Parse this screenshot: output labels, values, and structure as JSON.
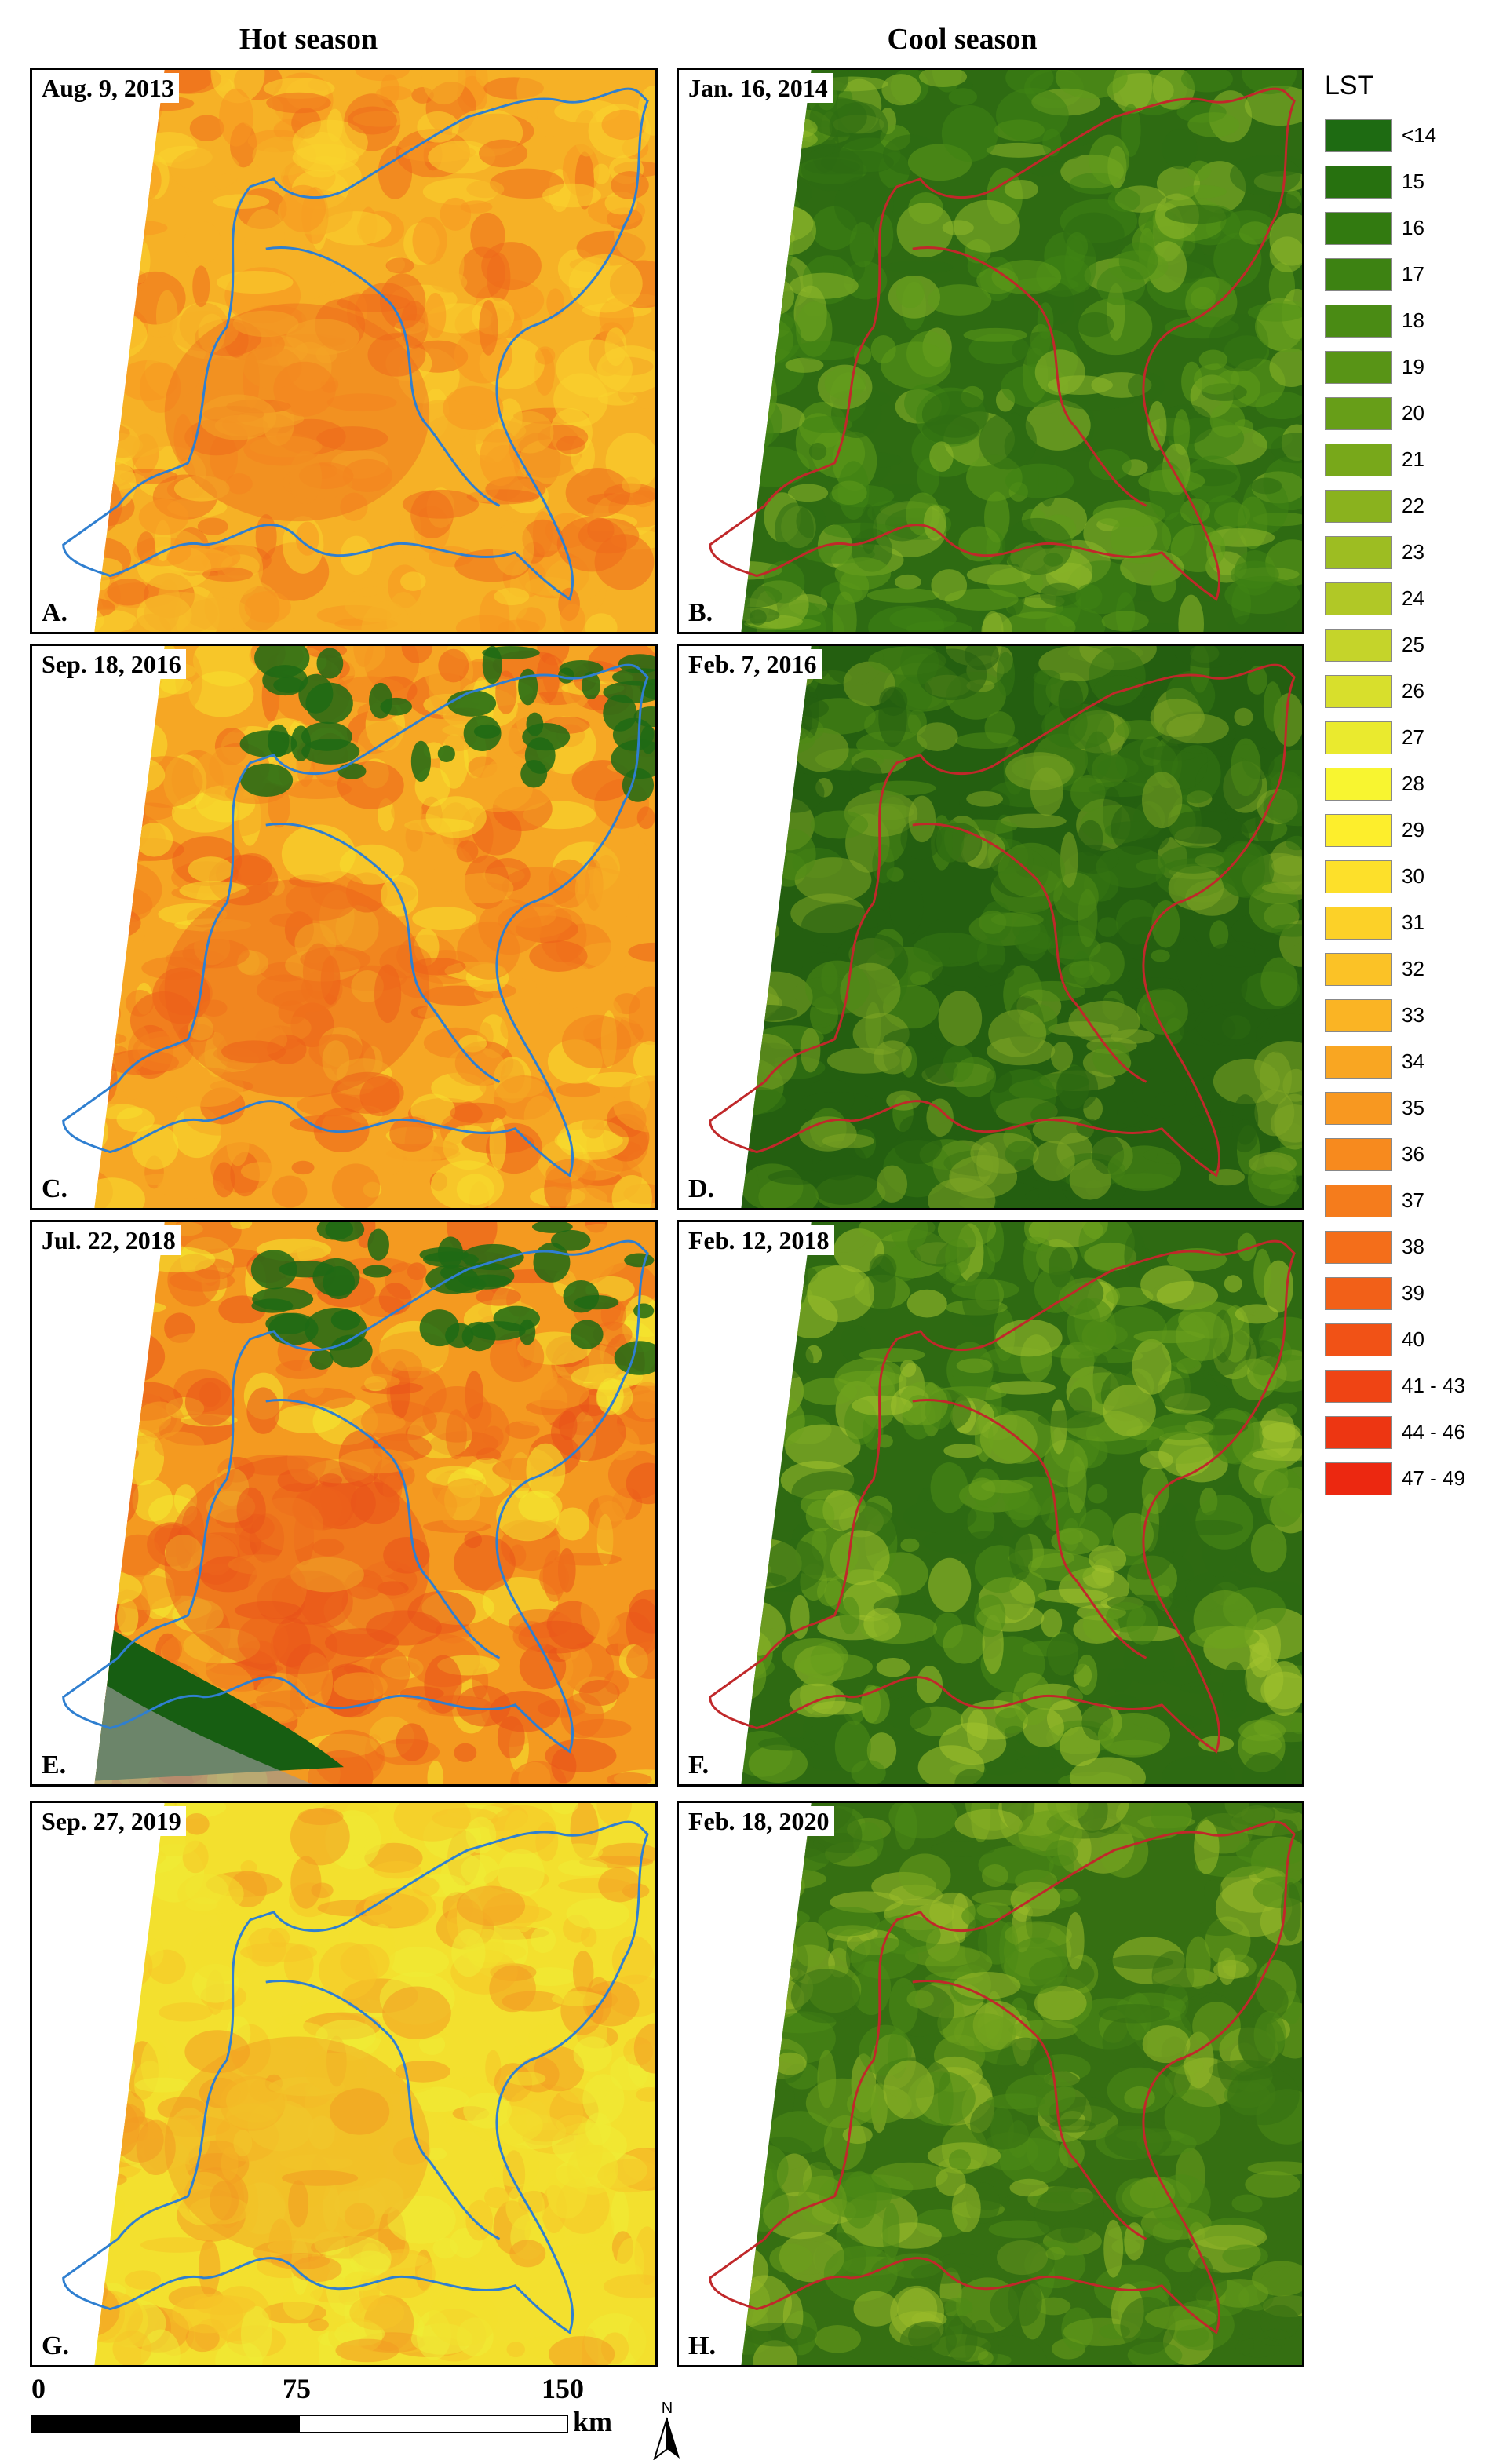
{
  "headers": {
    "hot": "Hot season",
    "cool": "Cool season"
  },
  "panels": [
    {
      "date": "Aug. 9, 2013",
      "letter": "A.",
      "season": "hot",
      "palette": [
        "#f6b126",
        "#f89520",
        "#ee6a1c",
        "#f9d32e"
      ]
    },
    {
      "date": "Jan. 16, 2014",
      "letter": "B.",
      "season": "cool",
      "palette": [
        "#2e6b12",
        "#3f8414",
        "#5e9a1a",
        "#8fb82a"
      ]
    },
    {
      "date": "Sep. 18, 2016",
      "letter": "C.",
      "season": "hot",
      "palette": [
        "#f6a724",
        "#f2801e",
        "#ec5f1a",
        "#f7e02e"
      ]
    },
    {
      "date": "Feb. 7, 2016",
      "letter": "D.",
      "season": "cool",
      "palette": [
        "#245f10",
        "#357512",
        "#4e8a16",
        "#7fa624"
      ]
    },
    {
      "date": "Jul. 22, 2018",
      "letter": "E.",
      "season": "hot",
      "palette": [
        "#f49a20",
        "#ef6e1c",
        "#e9521a",
        "#f4ea30"
      ]
    },
    {
      "date": "Feb. 12, 2018",
      "letter": "F.",
      "season": "cool",
      "palette": [
        "#2e6a12",
        "#4c8a16",
        "#6ea21e",
        "#a3c22e"
      ]
    },
    {
      "date": "Sep. 27, 2019",
      "letter": "G.",
      "season": "hot",
      "palette": [
        "#f3e02e",
        "#f5c528",
        "#f29b22",
        "#efec36"
      ]
    },
    {
      "date": "Feb. 18, 2020",
      "letter": "H.",
      "season": "cool",
      "palette": [
        "#356f12",
        "#4d8b16",
        "#6c9e1c",
        "#9bbb2a"
      ]
    }
  ],
  "legend": {
    "title": "LST",
    "items": [
      {
        "label": "<14",
        "color": "#1e6b12"
      },
      {
        "label": "15",
        "color": "#27710f"
      },
      {
        "label": "16",
        "color": "#327a10"
      },
      {
        "label": "17",
        "color": "#3d8212"
      },
      {
        "label": "18",
        "color": "#4a8b14"
      },
      {
        "label": "19",
        "color": "#589416"
      },
      {
        "label": "20",
        "color": "#679e18"
      },
      {
        "label": "21",
        "color": "#78a81a"
      },
      {
        "label": "22",
        "color": "#8ab21e"
      },
      {
        "label": "23",
        "color": "#9dbd22"
      },
      {
        "label": "24",
        "color": "#b1c826"
      },
      {
        "label": "25",
        "color": "#c5d42a"
      },
      {
        "label": "26",
        "color": "#d8df2c"
      },
      {
        "label": "27",
        "color": "#eaea2e"
      },
      {
        "label": "28",
        "color": "#f8f530"
      },
      {
        "label": "29",
        "color": "#fdee2c"
      },
      {
        "label": "30",
        "color": "#fde02a"
      },
      {
        "label": "31",
        "color": "#fcd128"
      },
      {
        "label": "32",
        "color": "#fbc226"
      },
      {
        "label": "33",
        "color": "#fab424"
      },
      {
        "label": "34",
        "color": "#f9a622"
      },
      {
        "label": "35",
        "color": "#f89820"
      },
      {
        "label": "36",
        "color": "#f78a1e"
      },
      {
        "label": "37",
        "color": "#f57c1c"
      },
      {
        "label": "38",
        "color": "#f46e1a"
      },
      {
        "label": "39",
        "color": "#f26018"
      },
      {
        "label": "40",
        "color": "#f15216"
      },
      {
        "label": "41 - 43",
        "color": "#ef4414"
      },
      {
        "label": "44 - 46",
        "color": "#ed3612"
      },
      {
        "label": "47 - 49",
        "color": "#ec2810"
      }
    ]
  },
  "scale": {
    "ticks": [
      "0",
      "75",
      "150"
    ],
    "unit": "km"
  },
  "north_label": "N"
}
